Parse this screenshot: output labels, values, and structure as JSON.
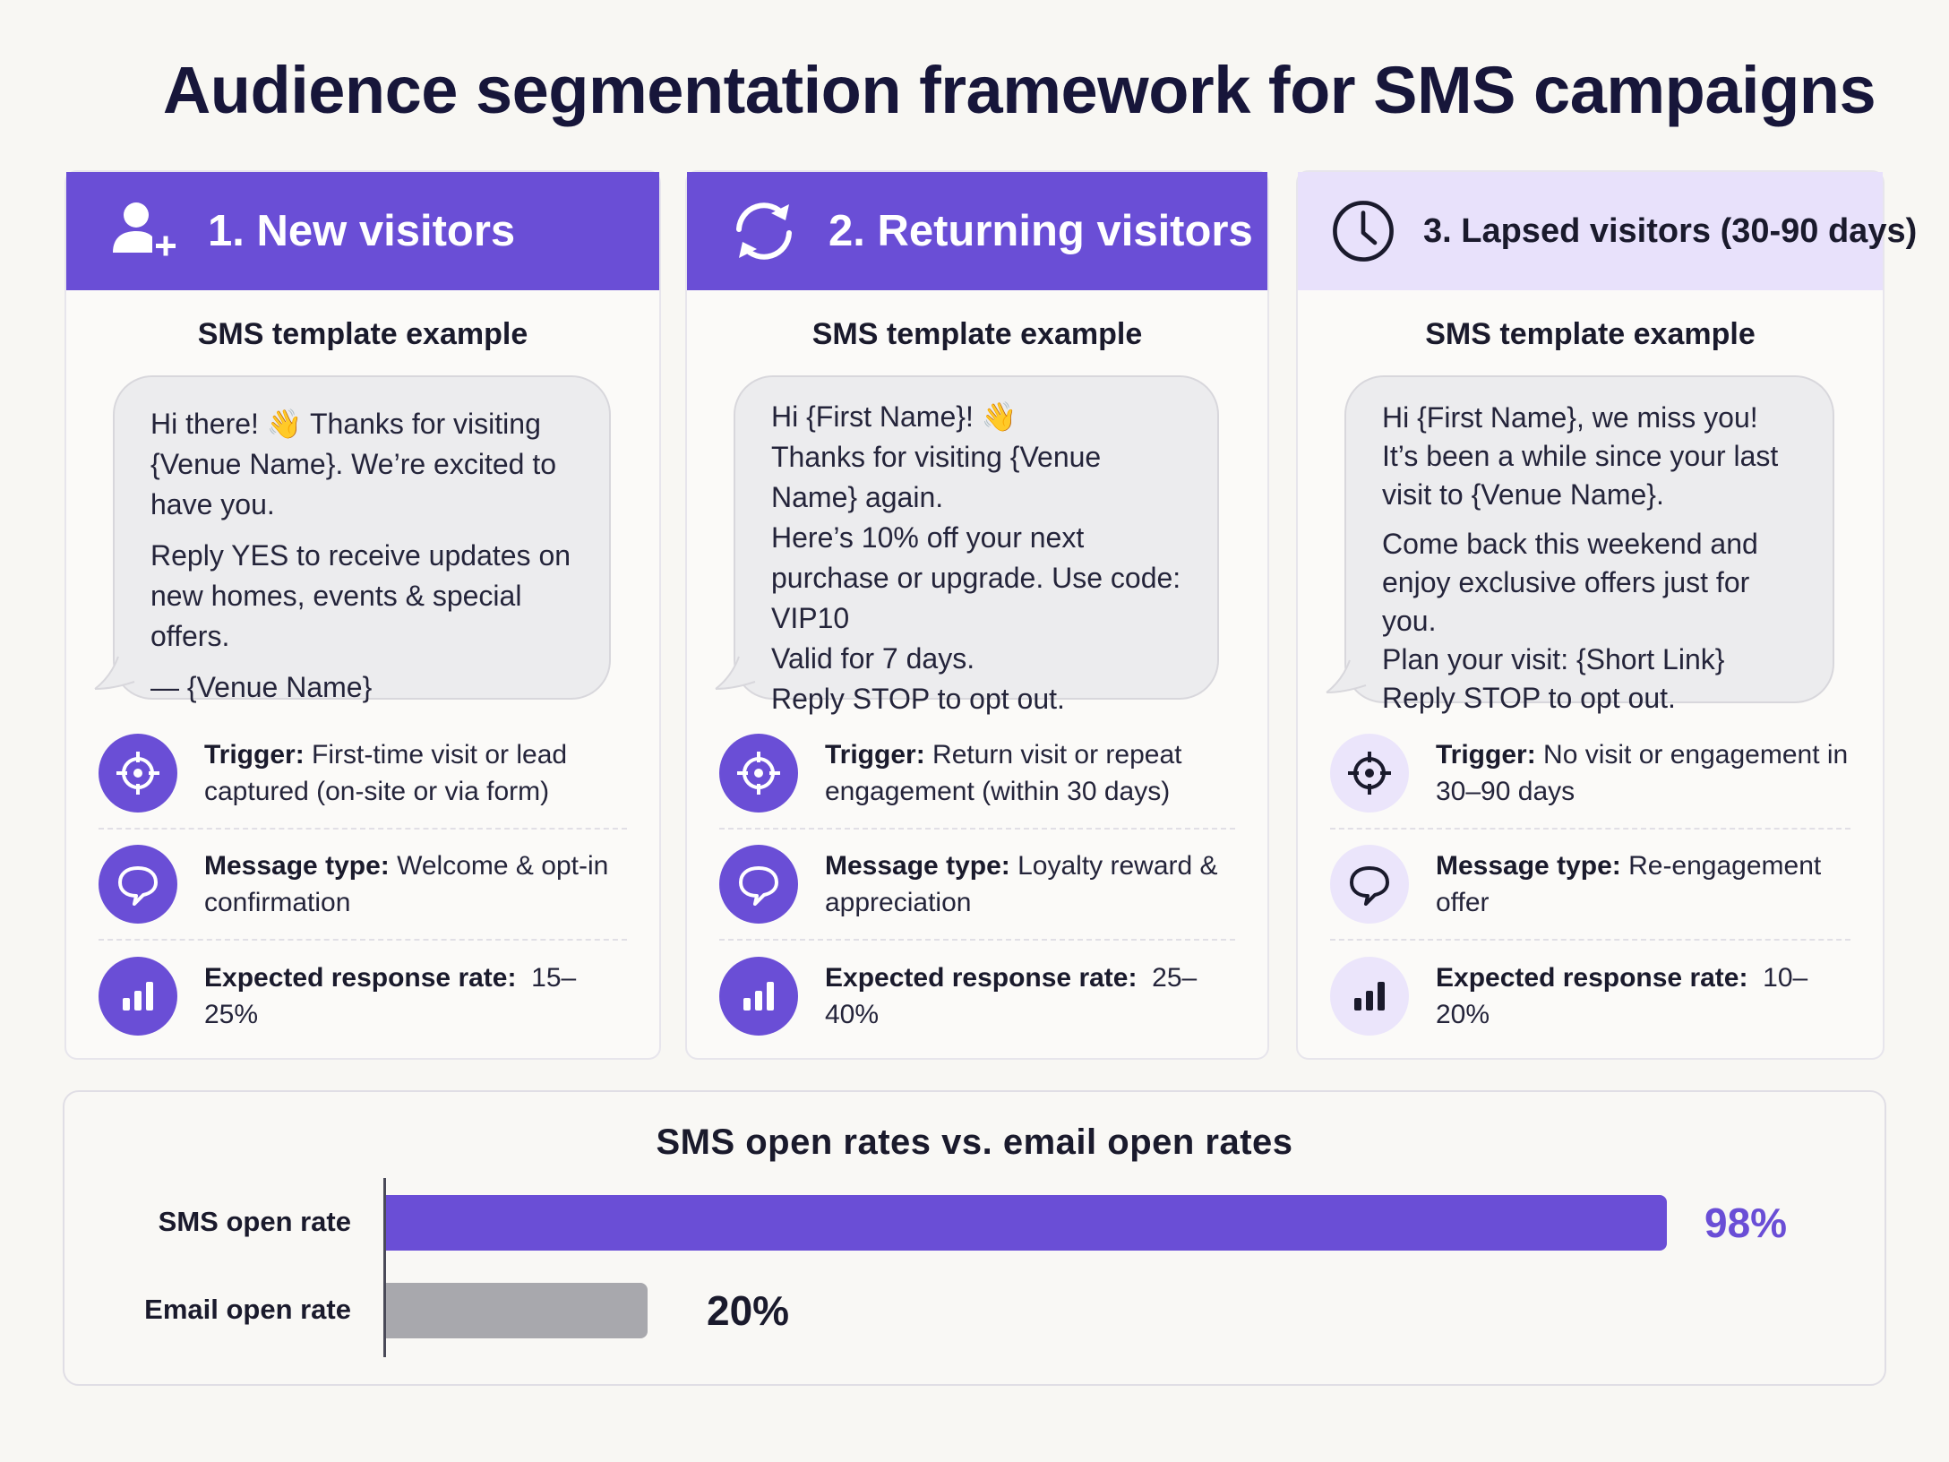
{
  "title": "Audience segmentation framework for SMS campaigns",
  "colors": {
    "accent": "#6a4ed6",
    "accent_light": "#e8e1fb",
    "email_bar": "#a8a8ad"
  },
  "cards": [
    {
      "header": "1. New visitors",
      "header_icon": "add-user-icon",
      "template_label": "SMS template example",
      "message": [
        "Hi there! 👋 Thanks for visiting {Venue Name}. We’re excited to have you.",
        "Reply YES to receive updates on new homes, events & special offers.",
        "— {Venue Name}"
      ],
      "trigger_label": "Trigger:",
      "trigger_value": "First-time visit or lead captured (on-site or via form)",
      "message_type_label": "Message type:",
      "message_type_value": "Welcome & opt-in confirmation",
      "response_label": "Expected response rate:",
      "response_value": "15–25%"
    },
    {
      "header": "2. Returning visitors",
      "header_icon": "refresh-icon",
      "template_label": "SMS template example",
      "message": [
        "Hi {First Name}! 👋",
        "Thanks for visiting {Venue Name} again.",
        "Here’s 10% off your next purchase or upgrade. Use code: VIP10",
        "Valid for 7 days.",
        "Reply STOP to opt out."
      ],
      "trigger_label": "Trigger:",
      "trigger_value": "Return visit or repeat engagement (within 30 days)",
      "message_type_label": "Message type:",
      "message_type_value": "Loyalty reward & appreciation",
      "response_label": "Expected response rate:",
      "response_value": "25–40%"
    },
    {
      "header": "3. Lapsed visitors (30-90 days)",
      "header_icon": "clock-icon",
      "template_label": "SMS template example",
      "message": [
        "Hi {First Name}, we miss you! It’s been a while since your last visit to {Venue Name}.",
        "Come back this weekend and enjoy exclusive offers just for you.",
        "Plan your visit: {Short Link}",
        "Reply STOP to opt out."
      ],
      "trigger_label": "Trigger:",
      "trigger_value": "No visit or engagement in 30–90 days",
      "message_type_label": "Message type:",
      "message_type_value": "Re-engagement offer",
      "response_label": "Expected response rate:",
      "response_value": "10–20%"
    }
  ],
  "chart_data": {
    "type": "bar",
    "title": "SMS open rates vs. email open rates",
    "categories": [
      "SMS open rate",
      "Email open rate"
    ],
    "values": [
      98,
      20
    ],
    "value_labels": [
      "98%",
      "20%"
    ],
    "unit": "%",
    "xlim": [
      0,
      100
    ],
    "colors": [
      "#6a4ed6",
      "#a8a8ad"
    ]
  }
}
